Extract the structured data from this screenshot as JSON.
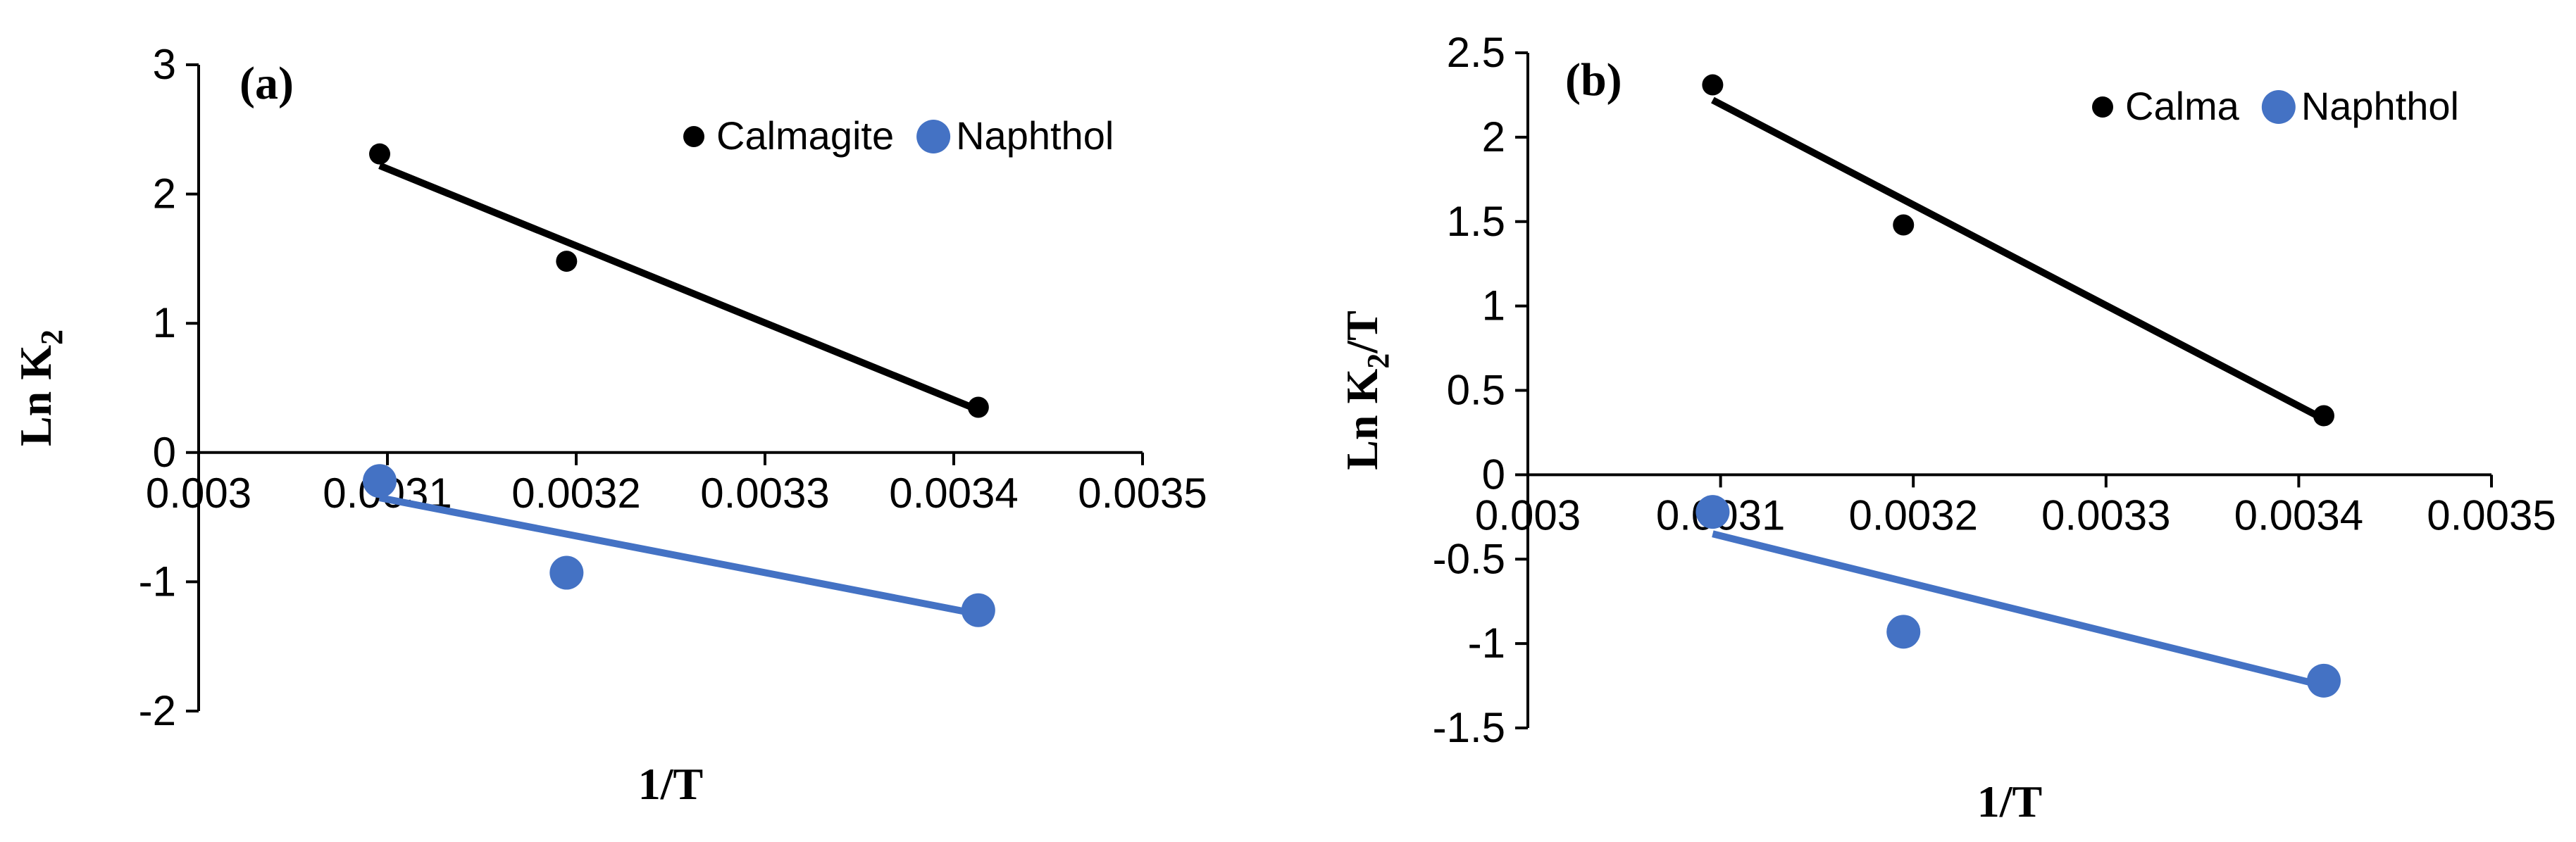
{
  "chart_data": [
    {
      "type": "scatter",
      "panel_label": "(a)",
      "xlabel": "1/T",
      "ylabel": "Ln K",
      "ylabel_sub": "2",
      "ylabel_suffix": "",
      "xlim": [
        0.003,
        0.0035
      ],
      "ylim": [
        -2,
        3
      ],
      "xticks": [
        0.003,
        0.0031,
        0.0032,
        0.0033,
        0.0034,
        0.0035
      ],
      "xtick_labels": [
        "0.003",
        "0.0031",
        "0.0032",
        "0.0033",
        "0.0034",
        "0.0035"
      ],
      "yticks": [
        -2,
        -1,
        0,
        1,
        2,
        3
      ],
      "ytick_labels": [
        "-2",
        "-1",
        "0",
        "1",
        "2",
        "3"
      ],
      "series": [
        {
          "name": "Calmagite",
          "color": "#000000",
          "marker_size": "small",
          "x": [
            0.0030959,
            0.0031949,
            0.003413
          ],
          "y": [
            2.31,
            1.48,
            0.35
          ],
          "trendline": {
            "x": [
              0.0030959,
              0.003413
            ],
            "y": [
              2.22,
              0.33
            ]
          }
        },
        {
          "name": "Naphthol",
          "color": "#4472C4",
          "marker_size": "large",
          "x": [
            0.0030959,
            0.0031949,
            0.003413
          ],
          "y": [
            -0.22,
            -0.93,
            -1.22
          ],
          "trendline": {
            "x": [
              0.0030959,
              0.003413
            ],
            "y": [
              -0.35,
              -1.25
            ]
          }
        }
      ],
      "legend": "top-right"
    },
    {
      "type": "scatter",
      "panel_label": "(b)",
      "xlabel": "1/T",
      "ylabel": "Ln K",
      "ylabel_sub": "2",
      "ylabel_suffix": "/T",
      "xlim": [
        0.003,
        0.0035
      ],
      "ylim": [
        -1.5,
        2.5
      ],
      "xticks": [
        0.003,
        0.0031,
        0.0032,
        0.0033,
        0.0034,
        0.0035
      ],
      "xtick_labels": [
        "0.003",
        "0.0031",
        "0.0032",
        "0.0033",
        "0.0034",
        "0.0035"
      ],
      "yticks": [
        -1.5,
        -1,
        -0.5,
        0,
        0.5,
        1,
        1.5,
        2,
        2.5
      ],
      "ytick_labels": [
        "-1.5",
        "-1",
        "-0.5",
        "0",
        "0.5",
        "1",
        "1.5",
        "2",
        "2.5"
      ],
      "series": [
        {
          "name": "Calma",
          "color": "#000000",
          "marker_size": "small",
          "x": [
            0.0030959,
            0.0031949,
            0.003413
          ],
          "y": [
            2.31,
            1.48,
            0.35
          ],
          "trendline": {
            "x": [
              0.0030959,
              0.003413
            ],
            "y": [
              2.22,
              0.33
            ]
          }
        },
        {
          "name": "Naphthol",
          "color": "#4472C4",
          "marker_size": "large",
          "x": [
            0.0030959,
            0.0031949,
            0.003413
          ],
          "y": [
            -0.22,
            -0.93,
            -1.22
          ],
          "trendline": {
            "x": [
              0.0030959,
              0.003413
            ],
            "y": [
              -0.35,
              -1.25
            ]
          }
        }
      ],
      "legend": "top-right"
    }
  ]
}
